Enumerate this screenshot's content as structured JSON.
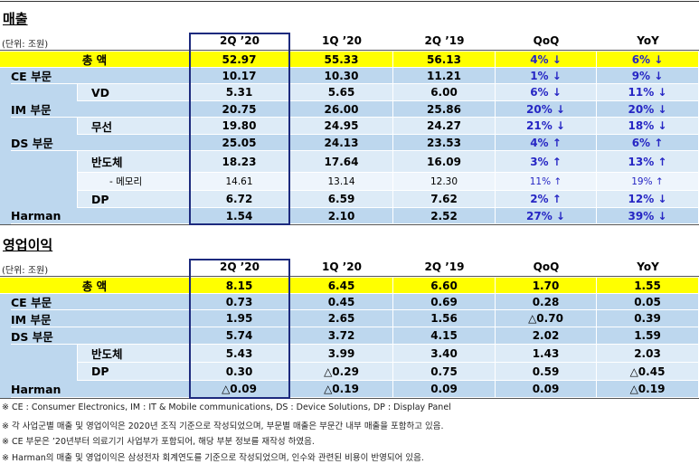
{
  "sections": [
    {
      "title": "매출",
      "unit": "(단위: 조원)",
      "columns": [
        "2Q ’20",
        "1Q ’20",
        "2Q ’19",
        "QoQ",
        "YoY"
      ],
      "rows": [
        {
          "label": "총 액",
          "cells": [
            "52.97",
            "55.33",
            "56.13",
            "4% ↓",
            "6% ↓"
          ]
        },
        {
          "label": "CE 부문",
          "cells": [
            "10.17",
            "10.30",
            "11.21",
            "1% ↓",
            "9% ↓"
          ],
          "children": [
            {
              "label": "VD",
              "cells": [
                "5.31",
                "5.65",
                "6.00",
                "6% ↓",
                "11% ↓"
              ]
            }
          ]
        },
        {
          "label": "IM 부문",
          "cells": [
            "20.75",
            "26.00",
            "25.86",
            "20% ↓",
            "20% ↓"
          ],
          "children": [
            {
              "label": "무선",
              "cells": [
                "19.80",
                "24.95",
                "24.27",
                "21% ↓",
                "18% ↓"
              ]
            }
          ]
        },
        {
          "label": "DS 부문",
          "cells": [
            "25.05",
            "24.13",
            "23.53",
            "4% ↑",
            "6% ↑"
          ],
          "children": [
            {
              "label": "반도체",
              "cells": [
                "18.23",
                "17.64",
                "16.09",
                "3% ↑",
                "13% ↑"
              ],
              "children": [
                {
                  "label": "- 메모리",
                  "cells": [
                    "14.61",
                    "13.14",
                    "12.30",
                    "11% ↑",
                    "19% ↑"
                  ]
                }
              ]
            },
            {
              "label": "DP",
              "cells": [
                "6.72",
                "6.59",
                "7.62",
                "2% ↑",
                "12% ↓"
              ]
            }
          ]
        },
        {
          "label": "Harman",
          "cells": [
            "1.54",
            "2.10",
            "2.52",
            "27% ↓",
            "39% ↓"
          ]
        }
      ]
    },
    {
      "title": "영업이익",
      "unit": "(단위: 조원)",
      "columns": [
        "2Q ’20",
        "1Q ’20",
        "2Q ’19",
        "QoQ",
        "YoY"
      ],
      "rows": [
        {
          "label": "총 액",
          "cells": [
            "8.15",
            "6.45",
            "6.60",
            "1.70",
            "1.55"
          ]
        },
        {
          "label": "CE 부문",
          "cells": [
            "0.73",
            "0.45",
            "0.69",
            "0.28",
            "0.05"
          ]
        },
        {
          "label": "IM 부문",
          "cells": [
            "1.95",
            "2.65",
            "1.56",
            "△0.70",
            "0.39"
          ]
        },
        {
          "label": "DS 부문",
          "cells": [
            "5.74",
            "3.72",
            "4.15",
            "2.02",
            "1.59"
          ],
          "children": [
            {
              "label": "반도체",
              "cells": [
                "5.43",
                "3.99",
                "3.40",
                "1.43",
                "2.03"
              ]
            },
            {
              "label": "DP",
              "cells": [
                "0.30",
                "△0.29",
                "0.75",
                "0.59",
                "△0.45"
              ]
            }
          ]
        },
        {
          "label": "Harman",
          "cells": [
            "△0.09",
            "△0.19",
            "0.09",
            "0.09",
            "△0.19"
          ]
        }
      ]
    }
  ],
  "footnotes": [
    "※ CE : Consumer Electronics,  IM : IT & Mobile communications,  DS : Device Solutions,  DP : Display Panel",
    "※ 각 사업군별 매출 및 영업이익은 2020년 조직 기준으로 작성되었으며, 부문별 매출은 부문간 내부 매출을 포함하고 있음.",
    "※ CE 부문은 ’20년부터 의료기기 사업부가 포함되어,  해당 부분 정보를 재작성 하였음.",
    "※ Harman의 매출 및 영업이익은 삼성전자 회계연도를 기준으로 작성되었으며, 인수와 관련된 비용이 반영되어 있음."
  ]
}
